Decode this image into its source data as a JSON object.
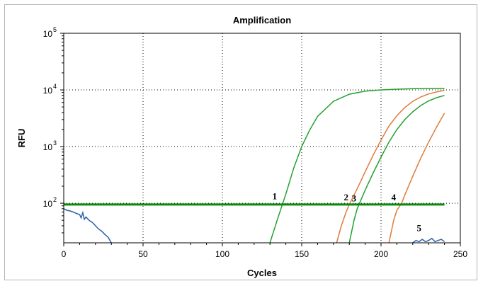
{
  "chart_data": {
    "type": "line",
    "title": "Amplification",
    "xlabel": "Cycles",
    "ylabel": "RFU",
    "xlim": [
      0,
      250
    ],
    "ylim": [
      20,
      100000
    ],
    "yscale": "log",
    "x_ticks": [
      "0",
      "50",
      "100",
      "150",
      "200",
      "250"
    ],
    "y_ticks": [
      {
        "base": "10",
        "exp": "2",
        "value": 100
      },
      {
        "base": "10",
        "exp": "3",
        "value": 1000
      },
      {
        "base": "10",
        "exp": "4",
        "value": 10000
      },
      {
        "base": "10",
        "exp": "5",
        "value": 100000
      }
    ],
    "grid": true,
    "threshold": {
      "value": 95,
      "x_range": [
        0,
        240
      ],
      "color": "#0a8a0a"
    },
    "series": [
      {
        "label": "1",
        "color": "#22a12e",
        "x": [
          130,
          135,
          140,
          145,
          150,
          155,
          160,
          170,
          180,
          190,
          200,
          210,
          220,
          230,
          240
        ],
        "y": [
          20,
          55,
          145,
          420,
          1000,
          1950,
          3400,
          6300,
          8400,
          9500,
          10000,
          10300,
          10500,
          10600,
          10700
        ]
      },
      {
        "label": "2",
        "color": "#e07b3c",
        "x": [
          172,
          175,
          178,
          180,
          185,
          190,
          195,
          200,
          205,
          210,
          215,
          220,
          225,
          230,
          235,
          240
        ],
        "y": [
          20,
          40,
          70,
          95,
          180,
          360,
          700,
          1300,
          2300,
          3500,
          4900,
          6300,
          7500,
          8500,
          9200,
          9800
        ]
      },
      {
        "label": "3",
        "color": "#22a12e",
        "x": [
          180,
          183,
          185,
          190,
          195,
          200,
          205,
          210,
          215,
          220,
          225,
          230,
          235,
          240
        ],
        "y": [
          20,
          50,
          80,
          170,
          340,
          650,
          1200,
          2000,
          3000,
          4100,
          5300,
          6400,
          7300,
          8000
        ]
      },
      {
        "label": "4",
        "color": "#e07b3c",
        "x": [
          205,
          208,
          210,
          213,
          215,
          220,
          225,
          230,
          235,
          240
        ],
        "y": [
          20,
          50,
          75,
          100,
          140,
          300,
          620,
          1200,
          2200,
          3900
        ]
      },
      {
        "label": "5",
        "color": "#2b5fa8",
        "x": [
          0,
          2,
          4,
          6,
          8,
          10,
          11,
          12,
          13,
          14,
          16,
          18,
          20,
          22,
          24,
          26,
          28,
          30,
          220,
          222,
          224,
          226,
          228,
          230,
          232,
          234,
          236,
          238,
          240
        ],
        "y": [
          80,
          75,
          73,
          70,
          66,
          63,
          55,
          68,
          52,
          57,
          50,
          46,
          40,
          35,
          32,
          28,
          25,
          20,
          20,
          22,
          21,
          23,
          21,
          22,
          24,
          21,
          22,
          23,
          21
        ]
      }
    ],
    "curve_labels": [
      {
        "text": "1",
        "x": 133,
        "y": 118
      },
      {
        "text": "2",
        "x": 178,
        "y": 113
      },
      {
        "text": "3",
        "x": 183,
        "y": 108
      },
      {
        "text": "4",
        "x": 208,
        "y": 113
      },
      {
        "text": "5",
        "x": 224,
        "y": 32
      }
    ]
  }
}
